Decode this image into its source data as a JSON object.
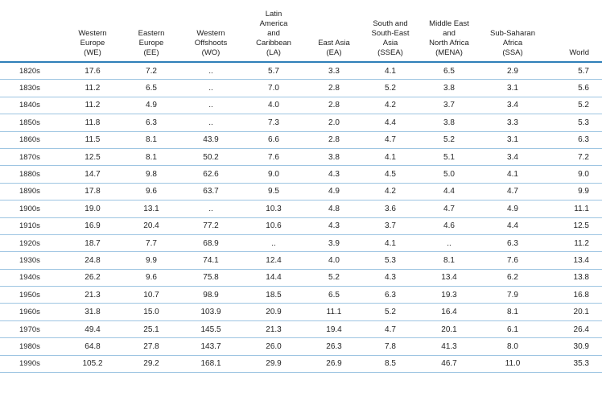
{
  "table": {
    "headers": [
      {
        "key": "period",
        "lines": []
      },
      {
        "key": "we",
        "lines": [
          "Western",
          "Europe",
          "(WE)"
        ]
      },
      {
        "key": "ee",
        "lines": [
          "Eastern",
          "Europe",
          "(EE)"
        ]
      },
      {
        "key": "wo",
        "lines": [
          "Western",
          "Offshoots",
          "(WO)"
        ]
      },
      {
        "key": "la",
        "lines": [
          "Latin",
          "America",
          "and",
          "Caribbean",
          "(LA)"
        ]
      },
      {
        "key": "ea",
        "lines": [
          "East Asia",
          "(EA)"
        ]
      },
      {
        "key": "ssea",
        "lines": [
          "South and",
          "South-East",
          "Asia",
          "(SSEA)"
        ]
      },
      {
        "key": "mena",
        "lines": [
          "Middle East",
          "and",
          "North Africa",
          "(MENA)"
        ]
      },
      {
        "key": "ssa",
        "lines": [
          "Sub-Saharan",
          "Africa",
          "(SSA)"
        ]
      },
      {
        "key": "world",
        "lines": [
          "World"
        ]
      }
    ],
    "rows": [
      [
        "1820s",
        "17.6",
        "7.2",
        "..",
        "5.7",
        "3.3",
        "4.1",
        "6.5",
        "2.9",
        "5.7"
      ],
      [
        "1830s",
        "11.2",
        "6.5",
        "..",
        "7.0",
        "2.8",
        "5.2",
        "3.8",
        "3.1",
        "5.6"
      ],
      [
        "1840s",
        "11.2",
        "4.9",
        "..",
        "4.0",
        "2.8",
        "4.2",
        "3.7",
        "3.4",
        "5.2"
      ],
      [
        "1850s",
        "11.8",
        "6.3",
        "..",
        "7.3",
        "2.0",
        "4.4",
        "3.8",
        "3.3",
        "5.3"
      ],
      [
        "1860s",
        "11.5",
        "8.1",
        "43.9",
        "6.6",
        "2.8",
        "4.7",
        "5.2",
        "3.1",
        "6.3"
      ],
      [
        "1870s",
        "12.5",
        "8.1",
        "50.2",
        "7.6",
        "3.8",
        "4.1",
        "5.1",
        "3.4",
        "7.2"
      ],
      [
        "1880s",
        "14.7",
        "9.8",
        "62.6",
        "9.0",
        "4.3",
        "4.5",
        "5.0",
        "4.1",
        "9.0"
      ],
      [
        "1890s",
        "17.8",
        "9.6",
        "63.7",
        "9.5",
        "4.9",
        "4.2",
        "4.4",
        "4.7",
        "9.9"
      ],
      [
        "1900s",
        "19.0",
        "13.1",
        "..",
        "10.3",
        "4.8",
        "3.6",
        "4.7",
        "4.9",
        "11.1"
      ],
      [
        "1910s",
        "16.9",
        "20.4",
        "77.2",
        "10.6",
        "4.3",
        "3.7",
        "4.6",
        "4.4",
        "12.5"
      ],
      [
        "1920s",
        "18.7",
        "7.7",
        "68.9",
        "..",
        "3.9",
        "4.1",
        "..",
        "6.3",
        "11.2"
      ],
      [
        "1930s",
        "24.8",
        "9.9",
        "74.1",
        "12.4",
        "4.0",
        "5.3",
        "8.1",
        "7.6",
        "13.4"
      ],
      [
        "1940s",
        "26.2",
        "9.6",
        "75.8",
        "14.4",
        "5.2",
        "4.3",
        "13.4",
        "6.2",
        "13.8"
      ],
      [
        "1950s",
        "21.3",
        "10.7",
        "98.9",
        "18.5",
        "6.5",
        "6.3",
        "19.3",
        "7.9",
        "16.8"
      ],
      [
        "1960s",
        "31.8",
        "15.0",
        "103.9",
        "20.9",
        "11.1",
        "5.2",
        "16.4",
        "8.1",
        "20.1"
      ],
      [
        "1970s",
        "49.4",
        "25.1",
        "145.5",
        "21.3",
        "19.4",
        "4.7",
        "20.1",
        "6.1",
        "26.4"
      ],
      [
        "1980s",
        "64.8",
        "27.8",
        "143.7",
        "26.0",
        "26.3",
        "7.8",
        "41.3",
        "8.0",
        "30.9"
      ],
      [
        "1990s",
        "105.2",
        "29.2",
        "168.1",
        "29.9",
        "26.9",
        "8.5",
        "46.7",
        "11.0",
        "35.3"
      ]
    ]
  }
}
